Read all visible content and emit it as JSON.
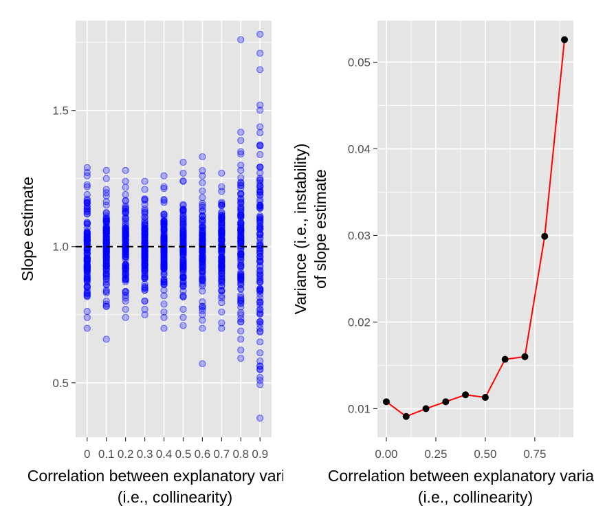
{
  "chart_data": [
    {
      "type": "scatter",
      "ylabel": "Slope estimate",
      "xlabel_line1": "Correlation between explanatory variables",
      "xlabel_line2": "(i.e., collinearity)",
      "categories": [
        "0",
        "0.1",
        "0.2",
        "0.3",
        "0.4",
        "0.5",
        "0.6",
        "0.7",
        "0.8",
        "0.9"
      ],
      "ylim": [
        0.3,
        1.83
      ],
      "yticks": [
        {
          "value": 0.5,
          "label": "0.5"
        },
        {
          "value": 1.0,
          "label": "1.0"
        },
        {
          "value": 1.5,
          "label": "1.5"
        }
      ],
      "reference_line": 1.0,
      "point_color": "#0000ff",
      "ranges": [
        {
          "min": 0.7,
          "max": 1.3,
          "outliers": [
            0.7,
            0.74,
            1.22,
            1.26,
            1.29
          ]
        },
        {
          "min": 0.66,
          "max": 1.28,
          "outliers": [
            0.66,
            0.78,
            0.8,
            1.21,
            1.25,
            1.28
          ]
        },
        {
          "min": 0.74,
          "max": 1.28,
          "outliers": [
            0.74,
            0.77,
            0.8,
            0.82,
            1.24,
            1.28
          ]
        },
        {
          "min": 0.75,
          "max": 1.24,
          "outliers": [
            0.75,
            0.77,
            0.8,
            1.21,
            1.24
          ]
        },
        {
          "min": 0.7,
          "max": 1.26,
          "outliers": [
            0.7,
            0.74,
            0.76,
            1.22,
            1.26
          ]
        },
        {
          "min": 0.71,
          "max": 1.31,
          "outliers": [
            0.71,
            0.74,
            0.77,
            1.24,
            1.27,
            1.31
          ]
        },
        {
          "min": 0.57,
          "max": 1.33,
          "outliers": [
            0.57,
            0.7,
            0.73,
            0.75,
            1.26,
            1.33
          ]
        },
        {
          "min": 0.7,
          "max": 1.27,
          "outliers": [
            0.7,
            0.72,
            0.76,
            1.22,
            1.27
          ]
        },
        {
          "min": 0.59,
          "max": 1.76,
          "outliers": [
            0.59,
            0.62,
            0.66,
            0.69,
            1.28,
            1.34,
            1.39,
            1.42,
            1.76
          ]
        },
        {
          "min": 0.37,
          "max": 1.78,
          "outliers": [
            0.37,
            0.52,
            0.55,
            0.58,
            0.61,
            0.65,
            0.7,
            1.44,
            1.52,
            1.65,
            1.71,
            1.78
          ]
        }
      ]
    },
    {
      "type": "line",
      "ylabel_line1": "Variance (i.e., instability)",
      "ylabel_line2": "of slope estimate",
      "xlabel_line1": "Correlation between explanatory variables",
      "xlabel_line2": "(i.e., collinearity)",
      "x": [
        0.0,
        0.1,
        0.2,
        0.3,
        0.4,
        0.5,
        0.6,
        0.7,
        0.8,
        0.9
      ],
      "y": [
        0.0108,
        0.0091,
        0.01,
        0.0108,
        0.0116,
        0.0113,
        0.0157,
        0.016,
        0.0299,
        0.0526
      ],
      "xlim": [
        -0.045,
        0.945
      ],
      "ylim": [
        0.0067,
        0.0548
      ],
      "xticks": [
        {
          "value": 0.0,
          "label": "0.00"
        },
        {
          "value": 0.25,
          "label": "0.25"
        },
        {
          "value": 0.5,
          "label": "0.50"
        },
        {
          "value": 0.75,
          "label": "0.75"
        }
      ],
      "yticks": [
        {
          "value": 0.01,
          "label": "0.01"
        },
        {
          "value": 0.02,
          "label": "0.02"
        },
        {
          "value": 0.03,
          "label": "0.03"
        },
        {
          "value": 0.04,
          "label": "0.04"
        },
        {
          "value": 0.05,
          "label": "0.05"
        }
      ],
      "line_color": "#ff0000",
      "point_color": "#000000"
    }
  ]
}
